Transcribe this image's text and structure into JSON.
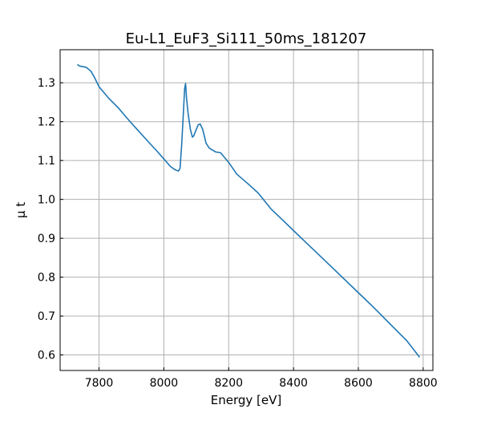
{
  "chart_data": {
    "type": "line",
    "title": "Eu-L1_EuF3_Si111_50ms_181207",
    "xlabel": "Energy [eV]",
    "ylabel": "μ t",
    "xlim": [
      7680,
      8830
    ],
    "ylim": [
      0.56,
      1.385
    ],
    "xticks": [
      7800,
      8000,
      8200,
      8400,
      8600,
      8800
    ],
    "yticks": [
      0.6,
      0.7,
      0.8,
      0.9,
      1.0,
      1.1,
      1.2,
      1.3
    ],
    "xtick_labels": [
      "7800",
      "8000",
      "8200",
      "8400",
      "8600",
      "8800"
    ],
    "ytick_labels": [
      "0.6",
      "0.7",
      "0.8",
      "0.9",
      "1.0",
      "1.1",
      "1.2",
      "1.3"
    ],
    "grid": true,
    "legend": "none",
    "series": [
      {
        "color": "#1f77b4",
        "x": [
          7733,
          7740,
          7760,
          7775,
          7785,
          7800,
          7830,
          7860,
          7880,
          7900,
          7920,
          7950,
          7980,
          8000,
          8020,
          8035,
          8045,
          8050,
          8055,
          8060,
          8064,
          8067,
          8070,
          8075,
          8082,
          8088,
          8092,
          8100,
          8106,
          8112,
          8120,
          8130,
          8140,
          8160,
          8175,
          8200,
          8225,
          8260,
          8290,
          8310,
          8330,
          8360,
          8400,
          8450,
          8500,
          8550,
          8600,
          8650,
          8700,
          8750,
          8789
        ],
        "y": [
          1.347,
          1.343,
          1.34,
          1.33,
          1.315,
          1.29,
          1.26,
          1.235,
          1.215,
          1.196,
          1.178,
          1.15,
          1.123,
          1.104,
          1.085,
          1.076,
          1.073,
          1.08,
          1.14,
          1.22,
          1.285,
          1.298,
          1.26,
          1.22,
          1.18,
          1.16,
          1.163,
          1.18,
          1.192,
          1.194,
          1.18,
          1.145,
          1.132,
          1.122,
          1.12,
          1.095,
          1.065,
          1.04,
          1.017,
          0.997,
          0.976,
          0.952,
          0.92,
          0.88,
          0.84,
          0.8,
          0.76,
          0.72,
          0.678,
          0.636,
          0.594
        ]
      }
    ]
  }
}
